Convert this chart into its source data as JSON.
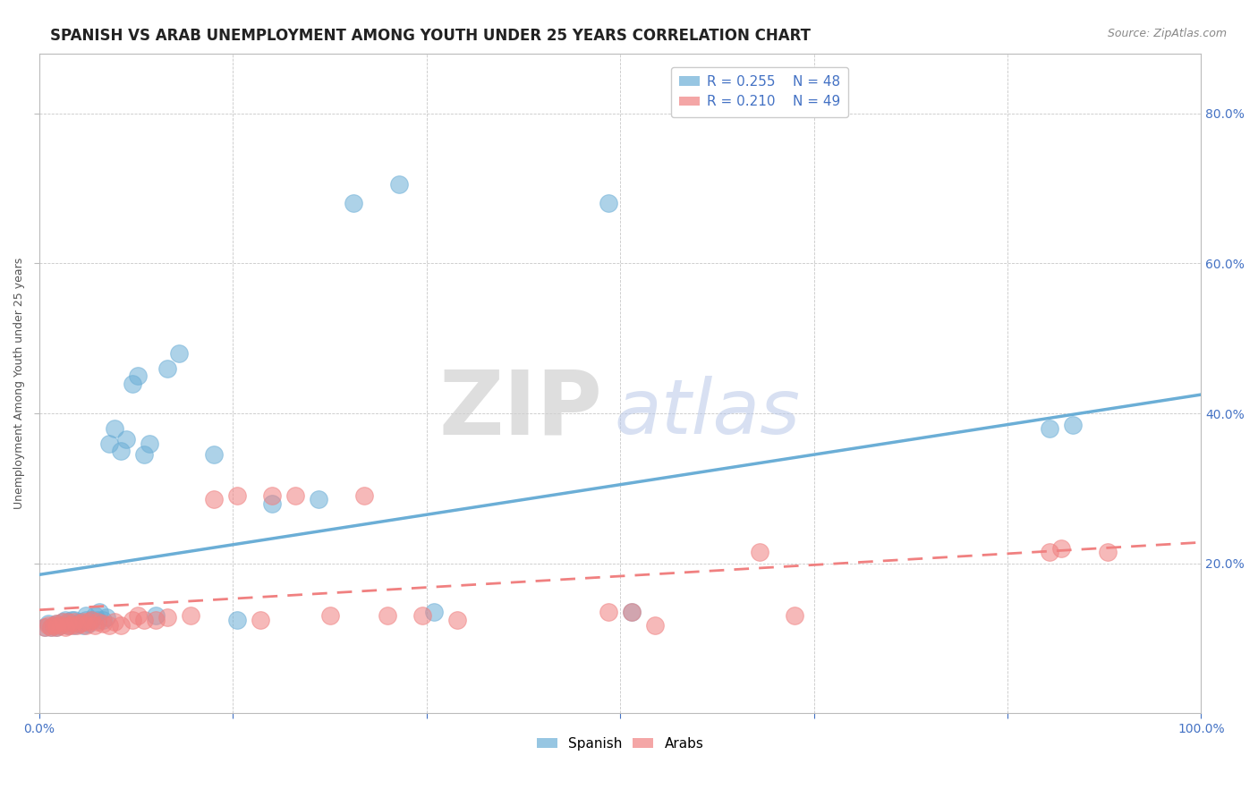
{
  "title": "SPANISH VS ARAB UNEMPLOYMENT AMONG YOUTH UNDER 25 YEARS CORRELATION CHART",
  "source": "Source: ZipAtlas.com",
  "xlabel": "",
  "ylabel": "Unemployment Among Youth under 25 years",
  "xlim": [
    0,
    1.0
  ],
  "ylim": [
    0,
    0.88
  ],
  "xticks": [
    0.0,
    0.1667,
    0.3333,
    0.5,
    0.6667,
    0.8333,
    1.0
  ],
  "xtick_labels_show": [
    "0.0%",
    "",
    "",
    "",
    "",
    "",
    "100.0%"
  ],
  "yticks_left": [],
  "right_yticks": [
    0.2,
    0.4,
    0.6,
    0.8
  ],
  "right_ytick_labels": [
    "20.0%",
    "40.0%",
    "60.0%",
    "80.0%"
  ],
  "spanish_color": "#6baed6",
  "arab_color": "#f08080",
  "spanish_R": 0.255,
  "spanish_N": 48,
  "arab_R": 0.21,
  "arab_N": 49,
  "spanish_trend": [
    0.0,
    1.0,
    0.185,
    0.425
  ],
  "arab_trend": [
    0.0,
    1.0,
    0.138,
    0.228
  ],
  "spanish_x": [
    0.005,
    0.008,
    0.01,
    0.012,
    0.015,
    0.015,
    0.018,
    0.02,
    0.022,
    0.025,
    0.025,
    0.028,
    0.03,
    0.03,
    0.033,
    0.035,
    0.038,
    0.04,
    0.04,
    0.042,
    0.045,
    0.048,
    0.05,
    0.052,
    0.055,
    0.058,
    0.06,
    0.065,
    0.07,
    0.075,
    0.08,
    0.085,
    0.09,
    0.095,
    0.1,
    0.11,
    0.12,
    0.15,
    0.17,
    0.2,
    0.24,
    0.27,
    0.31,
    0.34,
    0.49,
    0.51,
    0.87,
    0.89
  ],
  "spanish_y": [
    0.115,
    0.12,
    0.115,
    0.118,
    0.12,
    0.115,
    0.118,
    0.122,
    0.125,
    0.118,
    0.122,
    0.125,
    0.118,
    0.125,
    0.12,
    0.122,
    0.118,
    0.125,
    0.13,
    0.12,
    0.125,
    0.13,
    0.125,
    0.135,
    0.125,
    0.128,
    0.36,
    0.38,
    0.35,
    0.365,
    0.44,
    0.45,
    0.345,
    0.36,
    0.13,
    0.46,
    0.48,
    0.345,
    0.125,
    0.28,
    0.285,
    0.68,
    0.705,
    0.135,
    0.68,
    0.135,
    0.38,
    0.385
  ],
  "arab_x": [
    0.005,
    0.008,
    0.01,
    0.012,
    0.015,
    0.015,
    0.018,
    0.02,
    0.022,
    0.025,
    0.025,
    0.028,
    0.03,
    0.032,
    0.035,
    0.038,
    0.04,
    0.042,
    0.045,
    0.048,
    0.05,
    0.055,
    0.06,
    0.065,
    0.07,
    0.08,
    0.085,
    0.09,
    0.1,
    0.11,
    0.13,
    0.15,
    0.17,
    0.19,
    0.2,
    0.22,
    0.25,
    0.28,
    0.3,
    0.33,
    0.36,
    0.49,
    0.51,
    0.53,
    0.62,
    0.65,
    0.87,
    0.88,
    0.92
  ],
  "arab_y": [
    0.115,
    0.118,
    0.115,
    0.118,
    0.115,
    0.12,
    0.118,
    0.122,
    0.115,
    0.118,
    0.122,
    0.118,
    0.122,
    0.118,
    0.12,
    0.122,
    0.118,
    0.122,
    0.125,
    0.118,
    0.122,
    0.12,
    0.118,
    0.122,
    0.118,
    0.125,
    0.13,
    0.125,
    0.125,
    0.128,
    0.13,
    0.285,
    0.29,
    0.125,
    0.29,
    0.29,
    0.13,
    0.29,
    0.13,
    0.13,
    0.125,
    0.135,
    0.135,
    0.118,
    0.215,
    0.13,
    0.215,
    0.22,
    0.215
  ],
  "watermark_zip": "ZIP",
  "watermark_atlas": "atlas",
  "background_color": "#ffffff",
  "grid_color": "#c8c8c8",
  "title_fontsize": 12,
  "axis_fontsize": 9,
  "tick_fontsize": 10,
  "legend_fontsize": 11
}
